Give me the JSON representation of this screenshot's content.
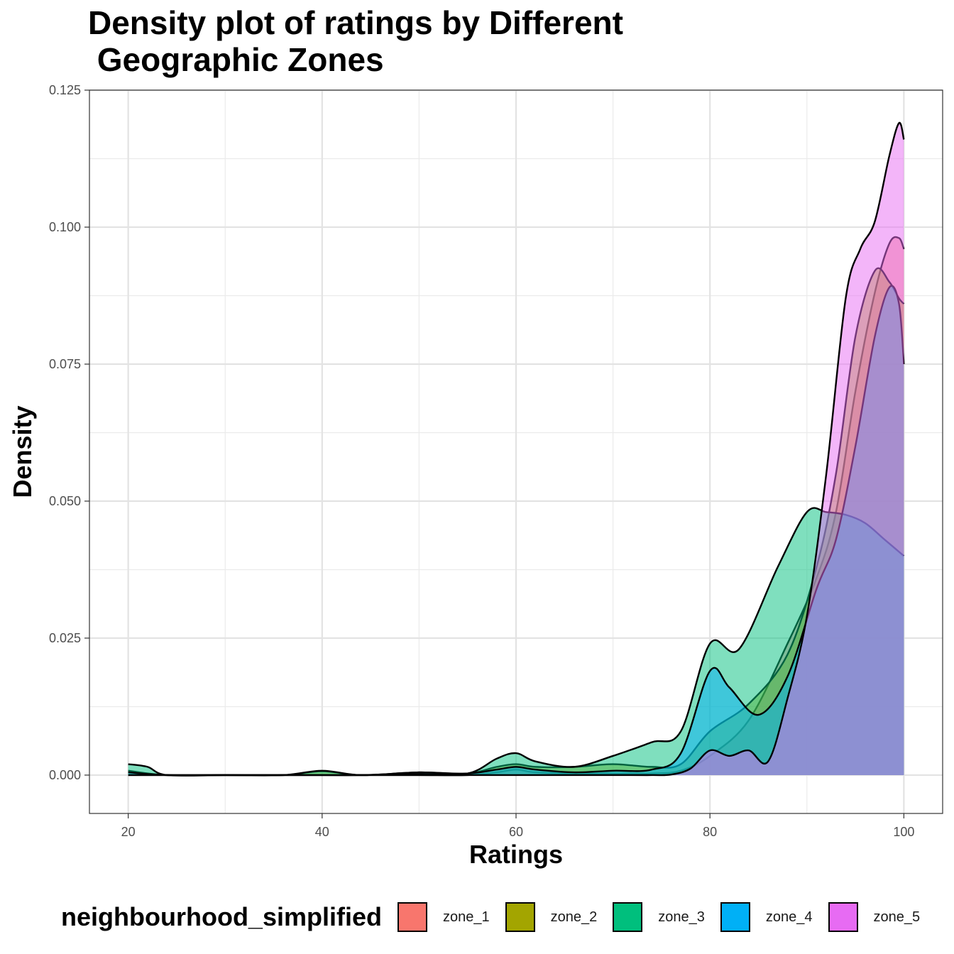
{
  "chart_data": {
    "type": "area",
    "title": "Density plot of ratings by Different\n Geographic Zones",
    "xlabel": "Ratings",
    "ylabel": "Density",
    "xlim": [
      16,
      104
    ],
    "ylim": [
      -0.007,
      0.125
    ],
    "x_ticks": [
      20,
      40,
      60,
      80,
      100
    ],
    "y_ticks": [
      0.0,
      0.025,
      0.05,
      0.075,
      0.1,
      0.125
    ],
    "y_tick_labels": [
      "0.000",
      "0.025",
      "0.050",
      "0.075",
      "0.100",
      "0.125"
    ],
    "grid": true,
    "legend": {
      "title": "neighbourhood_simplified",
      "placement": "bottom",
      "entries": [
        "zone_1",
        "zone_2",
        "zone_3",
        "zone_4",
        "zone_5"
      ]
    },
    "colors": {
      "zone_1": "#F8766D",
      "zone_2": "#A3A500",
      "zone_3": "#00BF7D",
      "zone_4": "#00B0F6",
      "zone_5": "#E76BF3"
    },
    "series": [
      {
        "name": "zone_1",
        "color": "#F8766D",
        "x": [
          20,
          24,
          30,
          36,
          40,
          44,
          50,
          55,
          58,
          60,
          62,
          66,
          70,
          74,
          77,
          80,
          84,
          88,
          91,
          93,
          95,
          97,
          98.5,
          99.5,
          100
        ],
        "y": [
          0.0,
          0.0,
          0.0,
          0.0,
          0.0,
          0.0,
          0.0,
          0.0,
          0.0005,
          0.001,
          0.0005,
          0.0003,
          0.0003,
          0.0003,
          0.0008,
          0.0035,
          0.01,
          0.024,
          0.036,
          0.048,
          0.07,
          0.088,
          0.097,
          0.098,
          0.096
        ]
      },
      {
        "name": "zone_2",
        "color": "#A3A500",
        "x": [
          20,
          24,
          30,
          36,
          40,
          44,
          50,
          55,
          58,
          60,
          62,
          66,
          70,
          74,
          77,
          80,
          84,
          88,
          91,
          93,
          95,
          97,
          98.5,
          99.5,
          100
        ],
        "y": [
          0.0008,
          0.0,
          0.0,
          0.0,
          0.0007,
          0.0,
          0.0005,
          0.0003,
          0.0015,
          0.002,
          0.0015,
          0.0015,
          0.002,
          0.0015,
          0.002,
          0.008,
          0.013,
          0.022,
          0.038,
          0.055,
          0.08,
          0.092,
          0.09,
          0.087,
          0.086
        ]
      },
      {
        "name": "zone_3",
        "color": "#00BF7D",
        "x": [
          20,
          22,
          24,
          30,
          36,
          40,
          44,
          50,
          55,
          58,
          60,
          62,
          66,
          70,
          74,
          77,
          80,
          83,
          87,
          90,
          92,
          94,
          96,
          98,
          100
        ],
        "y": [
          0.002,
          0.0015,
          0.0,
          0.0,
          0.0,
          0.0008,
          0.0,
          0.0005,
          0.0003,
          0.003,
          0.004,
          0.0025,
          0.0015,
          0.0035,
          0.006,
          0.008,
          0.024,
          0.023,
          0.038,
          0.048,
          0.048,
          0.0475,
          0.046,
          0.043,
          0.04
        ]
      },
      {
        "name": "zone_4",
        "color": "#00B0F6",
        "x": [
          20,
          24,
          30,
          36,
          40,
          44,
          50,
          55,
          58,
          60,
          62,
          66,
          70,
          74,
          77,
          80,
          82,
          85,
          88,
          91,
          93,
          95,
          97,
          98.5,
          99.5,
          100
        ],
        "y": [
          0.0005,
          0.0,
          0.0,
          0.0,
          0.0,
          0.0,
          0.0003,
          0.0003,
          0.001,
          0.0015,
          0.001,
          0.0005,
          0.0008,
          0.001,
          0.004,
          0.019,
          0.016,
          0.011,
          0.018,
          0.034,
          0.043,
          0.06,
          0.08,
          0.089,
          0.086,
          0.075
        ]
      },
      {
        "name": "zone_5",
        "color": "#E76BF3",
        "x": [
          20,
          30,
          40,
          50,
          60,
          70,
          74,
          76,
          78,
          80,
          82,
          84,
          86,
          88,
          90,
          92,
          94,
          95.5,
          97,
          98.5,
          99.5,
          100
        ],
        "y": [
          0.0,
          0.0,
          0.0,
          0.0,
          0.0,
          0.0,
          0.0,
          0.0001,
          0.0012,
          0.0045,
          0.0035,
          0.0045,
          0.0025,
          0.014,
          0.029,
          0.055,
          0.087,
          0.096,
          0.101,
          0.113,
          0.119,
          0.116
        ]
      }
    ]
  }
}
